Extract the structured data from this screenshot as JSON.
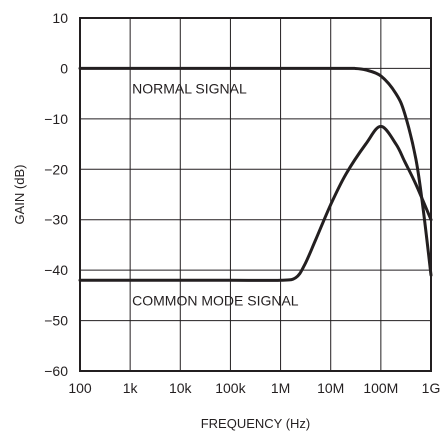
{
  "chart_data": {
    "type": "line",
    "title": "",
    "xlabel": "FREQUENCY (Hz)",
    "ylabel": "GAIN (dB)",
    "x_scale": "log",
    "xlim": [
      100,
      1000000000
    ],
    "ylim": [
      -60,
      10
    ],
    "x_ticks": [
      100,
      1000,
      10000,
      100000,
      1000000,
      10000000,
      100000000,
      1000000000
    ],
    "x_tick_labels": [
      "100",
      "1k",
      "10k",
      "100k",
      "1M",
      "10M",
      "100M",
      "1G"
    ],
    "y_ticks": [
      10,
      0,
      -10,
      -20,
      -30,
      -40,
      -50,
      -60
    ],
    "y_tick_labels": [
      "10",
      "0",
      "−10",
      "−20",
      "−30",
      "−40",
      "−50",
      "−60"
    ],
    "grid": true,
    "legend": "none",
    "series": [
      {
        "label": "NORMAL SIGNAL",
        "points": [
          [
            100,
            0
          ],
          [
            1000,
            0
          ],
          [
            10000,
            0
          ],
          [
            100000,
            0
          ],
          [
            1000000,
            0
          ],
          [
            10000000,
            0
          ],
          [
            30000000,
            0
          ],
          [
            50000000,
            -0.3
          ],
          [
            100000000,
            -1.5
          ],
          [
            200000000,
            -5
          ],
          [
            300000000,
            -9
          ],
          [
            500000000,
            -18
          ],
          [
            700000000,
            -28
          ],
          [
            1000000000,
            -41
          ]
        ]
      },
      {
        "label": "COMMON MODE SIGNAL",
        "points": [
          [
            100,
            -42
          ],
          [
            1000,
            -42
          ],
          [
            10000,
            -42
          ],
          [
            100000,
            -42
          ],
          [
            1000000,
            -42
          ],
          [
            2000000,
            -41.5
          ],
          [
            3000000,
            -39
          ],
          [
            5000000,
            -34
          ],
          [
            10000000,
            -27
          ],
          [
            20000000,
            -21
          ],
          [
            50000000,
            -15
          ],
          [
            100000000,
            -11.5
          ],
          [
            200000000,
            -15
          ],
          [
            300000000,
            -18.5
          ],
          [
            500000000,
            -23
          ],
          [
            1000000000,
            -30
          ]
        ]
      }
    ],
    "annotations": [
      {
        "text": "NORMAL SIGNAL",
        "x": 1000,
        "y": -4
      },
      {
        "text": "COMMON MODE SIGNAL",
        "x": 1000,
        "y": -46
      }
    ]
  }
}
